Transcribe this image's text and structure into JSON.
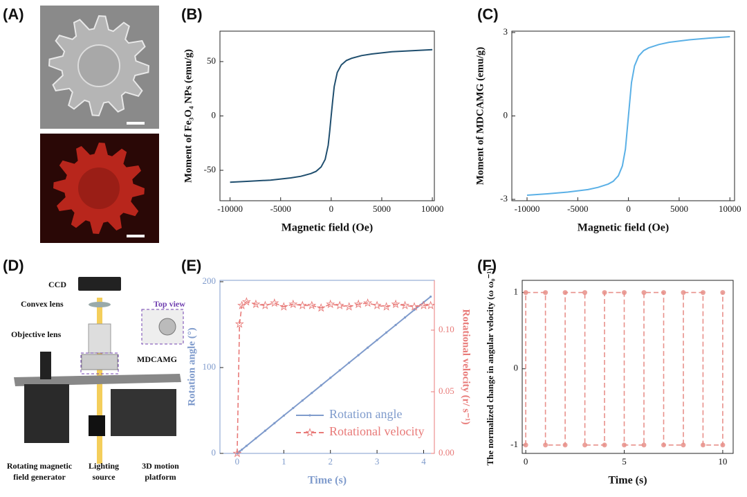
{
  "images": {
    "panel_a": {
      "label": "(A)"
    },
    "panel_d": {
      "label": "(D)",
      "parts": {
        "ccd": "CCD",
        "convex": "Convex lens",
        "objective": "Objective lens",
        "top_view": "Top view",
        "sample": "MDCAMG",
        "generator": [
          "Rotating magnetic",
          "field generator"
        ],
        "lighting": [
          "Lighting",
          "source"
        ],
        "platform": [
          "3D motion",
          "platform"
        ]
      }
    }
  },
  "chart_data": [
    {
      "type": "line",
      "label": "(B)",
      "xlabel": "Magnetic field (Oe)",
      "ylabel": "Moment of Fe₃O₄ NPs (emu/g)",
      "x": [
        -10000,
        -8000,
        -6000,
        -4000,
        -3000,
        -2000,
        -1500,
        -1000,
        -600,
        -300,
        -150,
        0,
        150,
        300,
        600,
        1000,
        1500,
        2000,
        3000,
        4000,
        6000,
        8000,
        10000
      ],
      "xlim": [
        -11000,
        10200
      ],
      "xticks": [
        -10000,
        -5000,
        0,
        5000,
        10000
      ],
      "ylim": [
        -78,
        78
      ],
      "yticks": [
        -50,
        0,
        50
      ],
      "series": [
        {
          "color": "#1f4e6e",
          "marker": "none",
          "dash": false,
          "values": [
            -61,
            -60,
            -59,
            -57,
            -55.5,
            -53,
            -51,
            -47,
            -40,
            -27,
            -14,
            0,
            14,
            27,
            40,
            47,
            51,
            53,
            55.5,
            57,
            59,
            60,
            61
          ]
        }
      ]
    },
    {
      "type": "line",
      "label": "(C)",
      "xlabel": "Magnetic field (Oe)",
      "ylabel": "Moment of MDCAMG (emu/g)",
      "x": [
        -10000,
        -8000,
        -6000,
        -4000,
        -3000,
        -2000,
        -1500,
        -1000,
        -600,
        -300,
        -150,
        0,
        150,
        300,
        600,
        1000,
        1500,
        2000,
        3000,
        4000,
        6000,
        8000,
        10000
      ],
      "xlim": [
        -11500,
        10460
      ],
      "xticks": [
        -10000,
        -5000,
        0,
        5000,
        10000
      ],
      "ylim": [
        -3.05,
        3.05
      ],
      "yticks": [
        -3,
        0,
        3
      ],
      "series": [
        {
          "color": "#5ab0e6",
          "marker": "none",
          "dash": false,
          "values": [
            -2.85,
            -2.8,
            -2.74,
            -2.65,
            -2.57,
            -2.45,
            -2.35,
            -2.15,
            -1.8,
            -1.2,
            -0.6,
            0,
            0.6,
            1.2,
            1.8,
            2.15,
            2.35,
            2.45,
            2.57,
            2.65,
            2.74,
            2.8,
            2.85
          ]
        }
      ]
    },
    {
      "type": "line",
      "label": "(E)",
      "xlabel": "Time (s)",
      "ylabel": "Rotation angle (°)",
      "y2label": "Rotational velocity (r/ s⁻¹)",
      "x": [
        0,
        0.05,
        0.1,
        0.2,
        0.4,
        0.6,
        0.8,
        1,
        1.2,
        1.4,
        1.6,
        1.8,
        2,
        2.2,
        2.4,
        2.6,
        2.8,
        3,
        3.2,
        3.4,
        3.6,
        3.8,
        4,
        4.15
      ],
      "xlim": [
        -0.37,
        4.23
      ],
      "xticks": [
        0,
        1,
        2,
        3,
        4
      ],
      "ylim": [
        0,
        201.6
      ],
      "yticks": [
        0,
        100,
        200
      ],
      "y2lim": [
        0,
        0.1404
      ],
      "y2ticks": [
        {
          "value": 0,
          "label": "0.00"
        },
        {
          "value": 0.05,
          "label": "0.05"
        },
        {
          "value": 0.1,
          "label": "0.10"
        }
      ],
      "legend": "lower right",
      "series": [
        {
          "name": "Rotation angle",
          "color": "#7f9bcc",
          "marker": "dot",
          "dash": false,
          "values": [
            0,
            2.2,
            4.4,
            8.8,
            17.6,
            26.4,
            35.2,
            44,
            52.8,
            61.6,
            70.4,
            79.2,
            88,
            96.8,
            105.6,
            114.4,
            123.2,
            132,
            140.8,
            149.6,
            158.4,
            167.2,
            176,
            182.6
          ]
        },
        {
          "name": "Rotational velocity",
          "color": "#e87a78",
          "marker": "star",
          "dash": true,
          "axis": "y2",
          "values": [
            0,
            0.105,
            0.12,
            0.123,
            0.121,
            0.12,
            0.122,
            0.119,
            0.121,
            0.12,
            0.12,
            0.118,
            0.121,
            0.12,
            0.119,
            0.121,
            0.122,
            0.12,
            0.119,
            0.121,
            0.12,
            0.119,
            0.12,
            0.12
          ]
        }
      ]
    },
    {
      "type": "line",
      "label": "(F)",
      "xlabel": "Time (s)",
      "ylabel": "The normalized change in angular velocity (ω ω₀⁻¹)",
      "x": [
        0,
        0,
        1,
        1,
        2,
        2,
        3,
        3,
        4,
        4,
        5,
        5,
        6,
        6,
        7,
        7,
        8,
        8,
        9,
        9,
        10,
        10
      ],
      "xlim": [
        -0.18,
        10.53
      ],
      "xticks": [
        0,
        5,
        10
      ],
      "ylim": [
        -1.11,
        1.16
      ],
      "yticks": [
        -1,
        0,
        1
      ],
      "series": [
        {
          "color": "#e8908a",
          "marker": "circle",
          "dash": true,
          "values": [
            -1,
            1,
            1,
            -1,
            -1,
            1,
            1,
            -1,
            -1,
            1,
            1,
            -1,
            -1,
            1,
            1,
            -1,
            -1,
            1,
            1,
            -1,
            -1,
            1
          ]
        }
      ]
    }
  ]
}
